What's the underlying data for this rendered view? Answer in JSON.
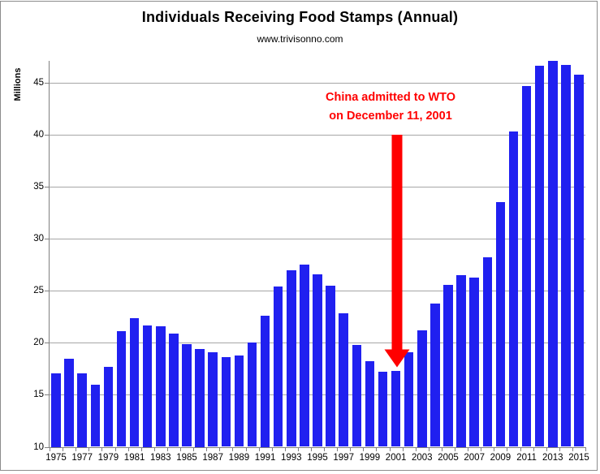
{
  "title": "Individuals Receiving Food Stamps (Annual)",
  "subtitle": "www.trivisonno.com",
  "y_axis_label": "Millions",
  "annotation": {
    "line1": "China admitted to WTO",
    "line2": "on December 11, 2001"
  },
  "colors": {
    "bar": "#2020f0",
    "annotation": "#ff0000",
    "gridline": "#a6a6a6",
    "axis": "#808080",
    "text": "#000000",
    "frame": "#8c8c8c"
  },
  "chart_data": {
    "type": "bar",
    "title": "Individuals Receiving Food Stamps (Annual)",
    "subtitle": "www.trivisonno.com",
    "xlabel": "",
    "ylabel": "Millions",
    "ylim": [
      10,
      47.1
    ],
    "ytick_step": 5,
    "grid": true,
    "legend": false,
    "x_labels_every": 2,
    "categories": [
      1975,
      1976,
      1977,
      1978,
      1979,
      1980,
      1981,
      1982,
      1983,
      1984,
      1985,
      1986,
      1987,
      1988,
      1989,
      1990,
      1991,
      1992,
      1993,
      1994,
      1995,
      1996,
      1997,
      1998,
      1999,
      2000,
      2001,
      2002,
      2003,
      2004,
      2005,
      2006,
      2007,
      2008,
      2009,
      2010,
      2011,
      2012,
      2013,
      2014,
      2015
    ],
    "values": [
      17.1,
      18.5,
      17.1,
      16.0,
      17.7,
      21.1,
      22.4,
      21.7,
      21.6,
      20.9,
      19.9,
      19.4,
      19.1,
      18.6,
      18.8,
      20.0,
      22.6,
      25.4,
      27.0,
      27.5,
      26.6,
      25.5,
      22.8,
      19.8,
      18.2,
      17.2,
      17.3,
      19.1,
      21.2,
      23.8,
      25.6,
      26.5,
      26.3,
      28.2,
      33.5,
      40.3,
      44.7,
      46.6,
      47.1,
      46.7,
      45.8
    ],
    "annotation": {
      "text": [
        "China admitted to WTO",
        "on December 11, 2001"
      ],
      "points_to_category": 2001
    }
  }
}
